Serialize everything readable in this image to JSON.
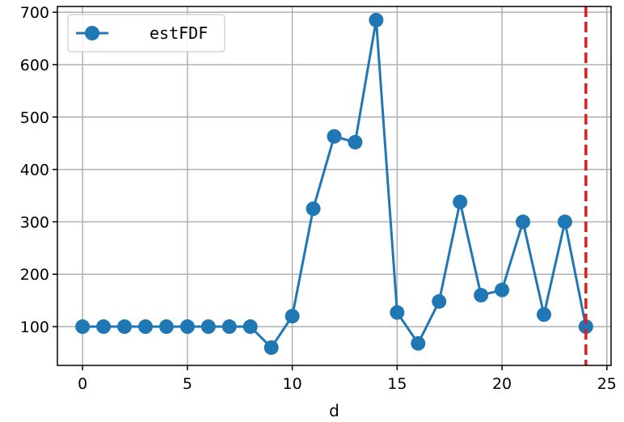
{
  "chart_data": {
    "type": "line",
    "xlabel": "d",
    "ylabel": "",
    "xlim": [
      -1.2,
      25.2
    ],
    "ylim": [
      26,
      711
    ],
    "xticks": [
      0,
      5,
      10,
      15,
      20,
      25
    ],
    "yticks": [
      100,
      200,
      300,
      400,
      500,
      600,
      700
    ],
    "grid": true,
    "legend_position": "top-left",
    "series": [
      {
        "name": "estFDF",
        "color": "#1f77b4",
        "marker": "circle",
        "x": [
          0,
          1,
          2,
          3,
          4,
          5,
          6,
          7,
          8,
          9,
          10,
          11,
          12,
          13,
          14,
          15,
          16,
          17,
          18,
          19,
          20,
          21,
          22,
          23,
          24
        ],
        "y": [
          100,
          100,
          100,
          100,
          100,
          100,
          100,
          100,
          100,
          60,
          120,
          325,
          463,
          452,
          685,
          127,
          68,
          148,
          338,
          160,
          170,
          300,
          123,
          300,
          100
        ]
      }
    ],
    "vline": {
      "x": 24,
      "color": "#e41a1c",
      "style": "dashed"
    }
  }
}
